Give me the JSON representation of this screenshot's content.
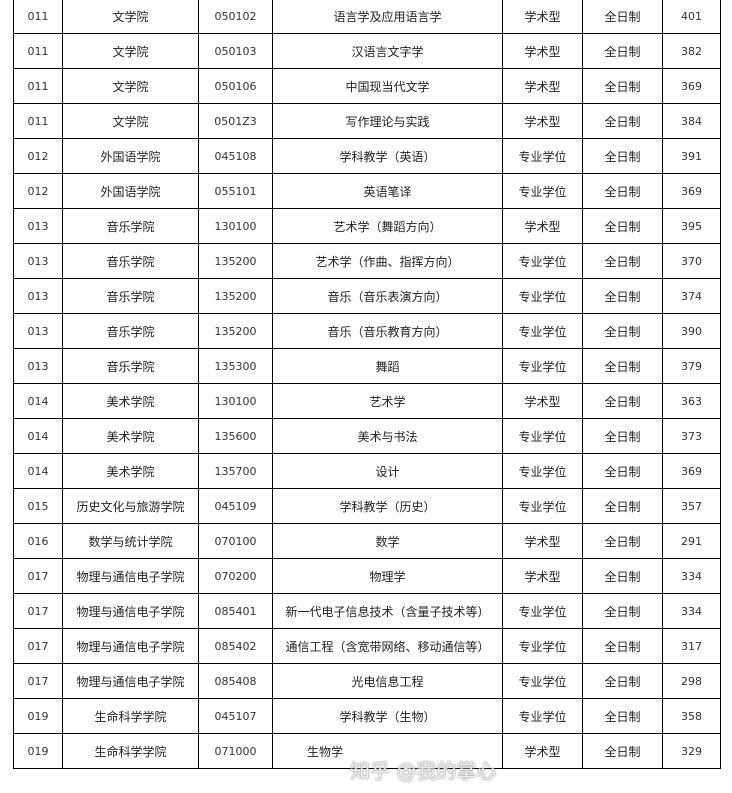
{
  "table": {
    "rows": [
      [
        "011",
        "文学院",
        "050102",
        "语言学及应用语言学",
        "学术型",
        "全日制",
        "401"
      ],
      [
        "011",
        "文学院",
        "050103",
        "汉语言文字学",
        "学术型",
        "全日制",
        "382"
      ],
      [
        "011",
        "文学院",
        "050106",
        "中国现当代文学",
        "学术型",
        "全日制",
        "369"
      ],
      [
        "011",
        "文学院",
        "0501Z3",
        "写作理论与实践",
        "学术型",
        "全日制",
        "384"
      ],
      [
        "012",
        "外国语学院",
        "045108",
        "学科教学（英语）",
        "专业学位",
        "全日制",
        "391"
      ],
      [
        "012",
        "外国语学院",
        "055101",
        "英语笔译",
        "专业学位",
        "全日制",
        "369"
      ],
      [
        "013",
        "音乐学院",
        "130100",
        "艺术学（舞蹈方向）",
        "学术型",
        "全日制",
        "395"
      ],
      [
        "013",
        "音乐学院",
        "135200",
        "艺术学（作曲、指挥方向）",
        "专业学位",
        "全日制",
        "370"
      ],
      [
        "013",
        "音乐学院",
        "135200",
        "音乐（音乐表演方向）",
        "专业学位",
        "全日制",
        "374"
      ],
      [
        "013",
        "音乐学院",
        "135200",
        "音乐（音乐教育方向）",
        "专业学位",
        "全日制",
        "390"
      ],
      [
        "013",
        "音乐学院",
        "135300",
        "舞蹈",
        "专业学位",
        "全日制",
        "379"
      ],
      [
        "014",
        "美术学院",
        "130100",
        "艺术学",
        "学术型",
        "全日制",
        "363"
      ],
      [
        "014",
        "美术学院",
        "135600",
        "美术与书法",
        "专业学位",
        "全日制",
        "373"
      ],
      [
        "014",
        "美术学院",
        "135700",
        "设计",
        "专业学位",
        "全日制",
        "369"
      ],
      [
        "015",
        "历史文化与旅游学院",
        "045109",
        "学科教学（历史）",
        "专业学位",
        "全日制",
        "357"
      ],
      [
        "016",
        "数学与统计学院",
        "070100",
        "数学",
        "学术型",
        "全日制",
        "291"
      ],
      [
        "017",
        "物理与通信电子学院",
        "070200",
        "物理学",
        "学术型",
        "全日制",
        "334"
      ],
      [
        "017",
        "物理与通信电子学院",
        "085401",
        "新一代电子信息技术（含量子技术等）",
        "专业学位",
        "全日制",
        "334"
      ],
      [
        "017",
        "物理与通信电子学院",
        "085402",
        "通信工程（含宽带网络、移动通信等）",
        "专业学位",
        "全日制",
        "317"
      ],
      [
        "017",
        "物理与通信电子学院",
        "085408",
        "光电信息工程",
        "专业学位",
        "全日制",
        "298"
      ],
      [
        "019",
        "生命科学学院",
        "045107",
        "学科教学（生物）",
        "专业学位",
        "全日制",
        "358"
      ],
      [
        "019",
        "生命科学学院",
        "071000",
        "生物学",
        "学术型",
        "全日制",
        "329"
      ]
    ]
  },
  "watermark": "知乎 @我的掌心"
}
